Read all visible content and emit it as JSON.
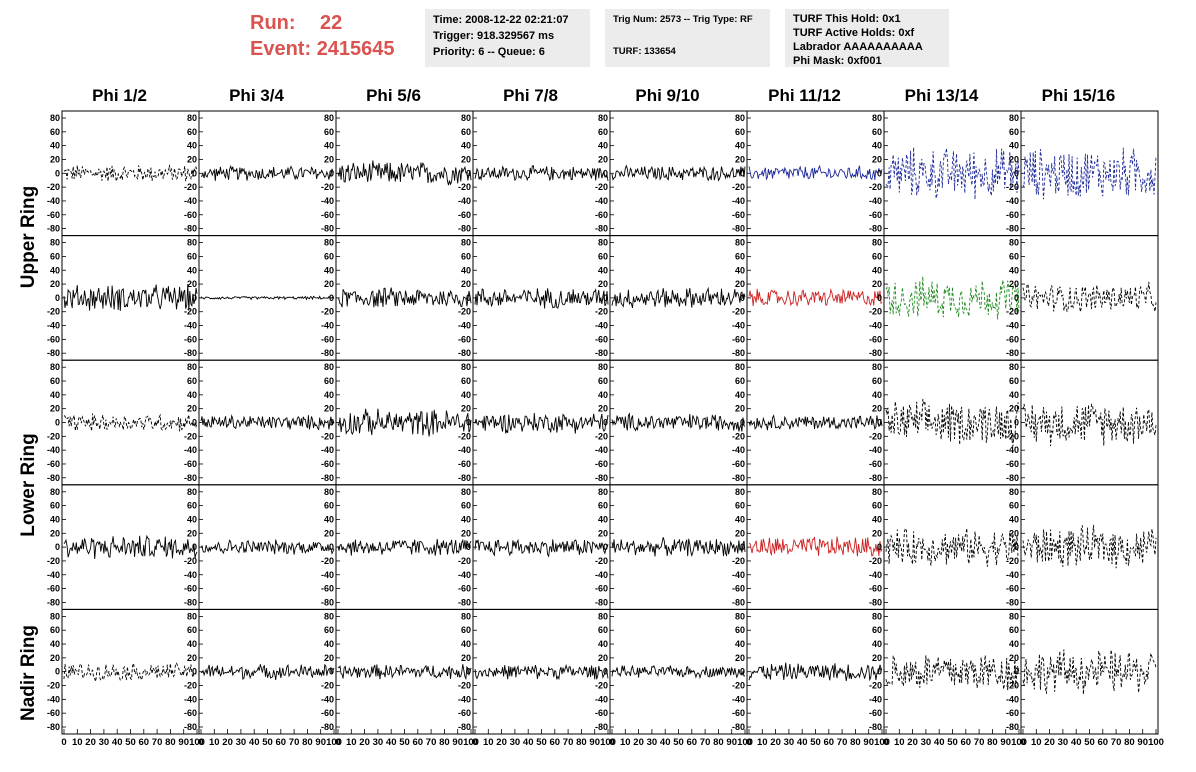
{
  "header": {
    "run_label": "Run:",
    "run_value": "22",
    "event_label": "Event:",
    "event_value": "2415645",
    "time_line": "Time: 2008-12-22 02:21:07",
    "trigger_line": "Trigger: 918.329567 ms",
    "priority_line": "Priority: 6 -- Queue: 6",
    "trig_line": "Trig Num: 2573 -- Trig Type: RF",
    "turf_line": "TURF: 133654",
    "hold_line": "TURF This Hold: 0x1",
    "active_holds_line": "TURF Active Holds: 0xf",
    "labrador_line": "Labrador AAAAAAAAAA",
    "phi_mask_line": "Phi Mask: 0xf001"
  },
  "columns": [
    "Phi 1/2",
    "Phi 3/4",
    "Phi 5/6",
    "Phi 7/8",
    "Phi 9/10",
    "Phi 11/12",
    "Phi 13/14",
    "Phi 15/16"
  ],
  "rows": [
    {
      "name": "Upper Ring",
      "panels": 2
    },
    {
      "name": "Lower Ring",
      "panels": 2
    },
    {
      "name": "Nadir Ring",
      "panels": 1
    }
  ],
  "chart_data": {
    "type": "line",
    "xlim": [
      0,
      100
    ],
    "ylim": [
      -80,
      80
    ],
    "xticks": [
      "0",
      "10",
      "20",
      "30",
      "40",
      "50",
      "60",
      "70",
      "80",
      "90",
      "100"
    ],
    "yticks": [
      "80",
      "60",
      "40",
      "20",
      "0",
      "-20",
      "-40",
      "-60",
      "-80"
    ],
    "trace_colors": {
      "default": "#000000",
      "blue": "#1f2a99",
      "red": "#cc2222",
      "green": "#1f8a1f"
    },
    "panels": [
      [
        {
          "amp": 12,
          "color": "default",
          "dash": true
        },
        {
          "amp": 10,
          "color": "default",
          "dash": false
        },
        {
          "amp": 16,
          "color": "default",
          "dash": false
        },
        {
          "amp": 10,
          "color": "default",
          "dash": false
        },
        {
          "amp": 10,
          "color": "default",
          "dash": false
        },
        {
          "amp": 10,
          "color": "blue",
          "dash": false
        },
        {
          "amp": 35,
          "color": "blue",
          "dash": true
        },
        {
          "amp": 35,
          "color": "blue",
          "dash": true
        }
      ],
      [
        {
          "amp": 18,
          "color": "default",
          "dash": false
        },
        {
          "amp": 2,
          "color": "default",
          "dash": false
        },
        {
          "amp": 14,
          "color": "default",
          "dash": false
        },
        {
          "amp": 14,
          "color": "default",
          "dash": false
        },
        {
          "amp": 14,
          "color": "default",
          "dash": false
        },
        {
          "amp": 12,
          "color": "red",
          "dash": false
        },
        {
          "amp": 28,
          "color": "green",
          "dash": true
        },
        {
          "amp": 20,
          "color": "default",
          "dash": true
        }
      ],
      [
        {
          "amp": 12,
          "color": "default",
          "dash": true
        },
        {
          "amp": 10,
          "color": "default",
          "dash": false
        },
        {
          "amp": 18,
          "color": "default",
          "dash": false
        },
        {
          "amp": 14,
          "color": "default",
          "dash": false
        },
        {
          "amp": 12,
          "color": "default",
          "dash": false
        },
        {
          "amp": 10,
          "color": "default",
          "dash": false
        },
        {
          "amp": 30,
          "color": "default",
          "dash": true
        },
        {
          "amp": 30,
          "color": "default",
          "dash": true
        }
      ],
      [
        {
          "amp": 16,
          "color": "default",
          "dash": false
        },
        {
          "amp": 10,
          "color": "default",
          "dash": false
        },
        {
          "amp": 12,
          "color": "default",
          "dash": false
        },
        {
          "amp": 12,
          "color": "default",
          "dash": false
        },
        {
          "amp": 12,
          "color": "default",
          "dash": false
        },
        {
          "amp": 14,
          "color": "red",
          "dash": false
        },
        {
          "amp": 25,
          "color": "default",
          "dash": true
        },
        {
          "amp": 28,
          "color": "default",
          "dash": true
        }
      ],
      [
        {
          "amp": 12,
          "color": "default",
          "dash": true
        },
        {
          "amp": 10,
          "color": "default",
          "dash": false
        },
        {
          "amp": 10,
          "color": "default",
          "dash": false
        },
        {
          "amp": 10,
          "color": "default",
          "dash": false
        },
        {
          "amp": 8,
          "color": "default",
          "dash": false
        },
        {
          "amp": 12,
          "color": "default",
          "dash": false
        },
        {
          "amp": 28,
          "color": "default",
          "dash": true
        },
        {
          "amp": 30,
          "color": "default",
          "dash": true
        }
      ]
    ]
  }
}
